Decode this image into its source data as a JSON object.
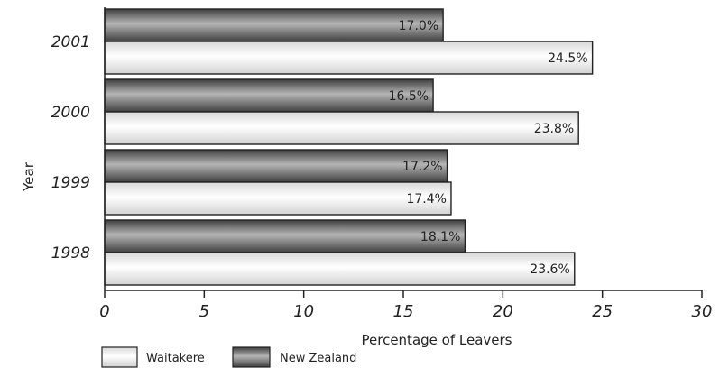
{
  "chart_data": {
    "type": "bar",
    "orientation": "horizontal",
    "categories": [
      "2001",
      "2000",
      "1999",
      "1998"
    ],
    "series": [
      {
        "name": "New Zealand",
        "values": [
          17.0,
          16.5,
          17.2,
          18.1
        ],
        "labels": [
          "17.0%",
          "16.5%",
          "17.2%",
          "18.1%"
        ],
        "color": "#707070"
      },
      {
        "name": "Waitakere",
        "values": [
          24.5,
          23.8,
          17.4,
          23.6
        ],
        "labels": [
          "24.5%",
          "23.8%",
          "17.4%",
          "23.6%"
        ],
        "color": "#f4f4f4"
      }
    ],
    "xlabel": "Percentage of Leavers",
    "ylabel": "Year",
    "xlim": [
      0,
      30
    ],
    "xticks": [
      "0",
      "5",
      "10",
      "15",
      "20",
      "25",
      "30"
    ],
    "grid": false,
    "legend_position": "bottom-left",
    "legend": [
      "Waitakere",
      "New Zealand"
    ]
  }
}
